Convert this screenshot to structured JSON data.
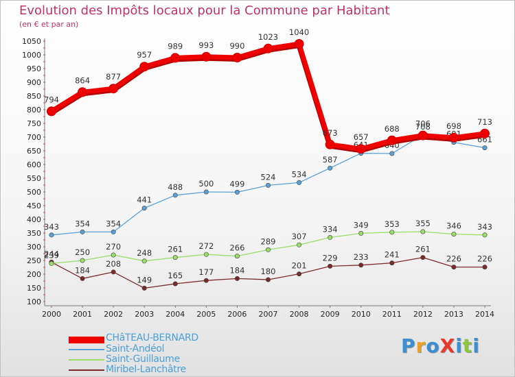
{
  "title": "Evolution des Impôts locaux pour la Commune par Habitant",
  "subtitle": "(en € et par an)",
  "logo": {
    "text": "ProXiti",
    "letters": [
      "P",
      "r",
      "o",
      "X",
      "i",
      "t",
      "i"
    ],
    "colors": [
      "#3a8fd4",
      "#f0a020",
      "#3a8fd4",
      "#e8372c",
      "#3a8fd4",
      "#8cc63f",
      "#3a8fd4"
    ]
  },
  "chart_data": {
    "type": "line",
    "title": "Evolution des Impôts locaux pour la Commune par Habitant",
    "subtitle": "(en € et par an)",
    "xlabel": "",
    "ylabel": "",
    "x": [
      "2000",
      "2001",
      "2002",
      "2003",
      "2004",
      "2005",
      "2006",
      "2007",
      "2008",
      "2009",
      "2010",
      "2011",
      "2012",
      "2013",
      "2014"
    ],
    "ylim": [
      100,
      1050
    ],
    "yticks": [
      "100",
      "150",
      "200",
      "250",
      "300",
      "350",
      "400",
      "450",
      "500",
      "550",
      "600",
      "650",
      "700",
      "750",
      "800",
      "850",
      "900",
      "950",
      "1000",
      "1050"
    ],
    "grid": false,
    "legend_position": "bottom-left",
    "series": [
      {
        "name": "CHâTEAU-BERNARD",
        "color": "#ee0000",
        "values": [
          794,
          864,
          877,
          957,
          989,
          993,
          990,
          1023,
          1040,
          673,
          657,
          688,
          706,
          698,
          713
        ],
        "labels": [
          "794",
          "864",
          "877",
          "957",
          "989",
          "993",
          "990",
          "1023",
          "1040",
          "673",
          "657",
          "688",
          "706",
          "698",
          "713"
        ]
      },
      {
        "name": "Saint-Andéol",
        "color": "#5aa0d8",
        "values": [
          343,
          354,
          354,
          441,
          488,
          500,
          499,
          524,
          534,
          587,
          641,
          640,
          708,
          681,
          661
        ],
        "labels": [
          "343",
          "354",
          "354",
          "441",
          "488",
          "500",
          "499",
          "524",
          "534",
          "587",
          "641",
          "640",
          "708",
          "681",
          "661"
        ]
      },
      {
        "name": "Saint-Guillaume",
        "color": "#99dd66",
        "values": [
          239,
          250,
          270,
          248,
          261,
          272,
          266,
          289,
          307,
          334,
          349,
          353,
          355,
          346,
          343
        ],
        "labels": [
          "239",
          "250",
          "270",
          "248",
          "261",
          "272",
          "266",
          "289",
          "307",
          "334",
          "349",
          "353",
          "355",
          "346",
          "343"
        ]
      },
      {
        "name": "Miribel-Lanchâtre",
        "color": "#7a2a2a",
        "values": [
          244,
          184,
          208,
          149,
          165,
          177,
          184,
          180,
          201,
          229,
          233,
          241,
          261,
          226,
          226
        ],
        "labels": [
          "244",
          "184",
          "208",
          "149",
          "165",
          "177",
          "184",
          "180",
          "201",
          "229",
          "233",
          "241",
          "261",
          "226",
          "226"
        ]
      }
    ]
  }
}
